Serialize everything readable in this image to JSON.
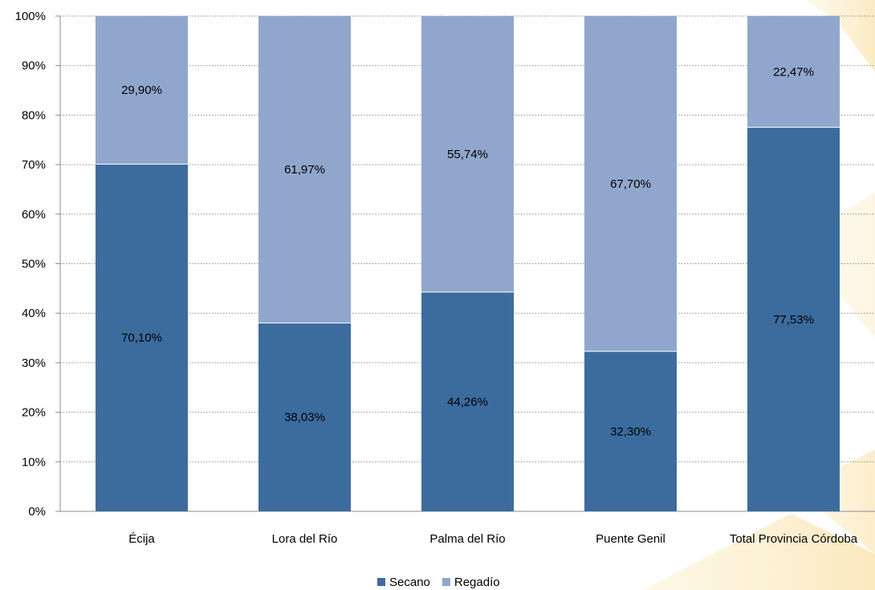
{
  "chart_data": {
    "type": "bar",
    "stacked": true,
    "percent_stacked": true,
    "categories": [
      "Écija",
      "Lora del Río",
      "Palma del Río",
      "Puente Genil",
      "Total Provincia Córdoba"
    ],
    "series": [
      {
        "name": "Secano",
        "values": [
          70.1,
          38.03,
          44.26,
          32.3,
          77.53
        ],
        "labels": [
          "70,10%",
          "38,03%",
          "44,26%",
          "32,30%",
          "77,53%"
        ],
        "color": "#3C6C9E"
      },
      {
        "name": "Regadío",
        "values": [
          29.9,
          61.97,
          55.74,
          67.7,
          22.47
        ],
        "labels": [
          "29,90%",
          "61,97%",
          "55,74%",
          "67,70%",
          "22,47%"
        ],
        "color": "#91A6CC"
      }
    ],
    "ylim": [
      0,
      100
    ],
    "yticks": [
      "0%",
      "10%",
      "20%",
      "30%",
      "40%",
      "50%",
      "60%",
      "70%",
      "80%",
      "90%",
      "100%"
    ],
    "grid": "horizontal-dotted",
    "legend": "bottom-center",
    "background_decoration_color": "#F8D889"
  }
}
